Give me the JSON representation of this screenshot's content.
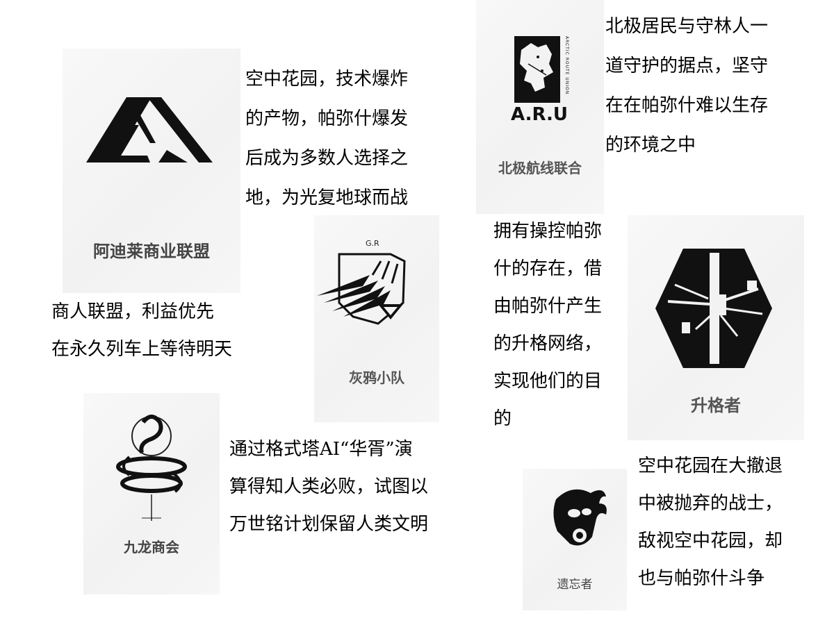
{
  "factions": [
    {
      "id": "adilai",
      "name": "阿迪莱商业联盟",
      "logo_icon": "double-triangle-emblem",
      "description": [
        "空中花园，技术爆炸",
        "的产物，帕弥什爆发",
        "后成为多数人选择之",
        "地，为光复地球而战"
      ]
    },
    {
      "id": "aru",
      "name": "北极航线联合",
      "logo_icon": "aru-map-emblem",
      "logo_text": "A.R.U",
      "logo_vertical_text": "ARCTIC ROUTE UNION",
      "description": [
        "北极居民与守林人一",
        "道守护的据点，坚守",
        "在在帕弥什难以生存",
        "的环境之中"
      ]
    },
    {
      "id": "merchant",
      "description": [
        "商人联盟，利益优先",
        "在永久列车上等待明天"
      ]
    },
    {
      "id": "gray-raven",
      "name": "灰鸦小队",
      "logo_icon": "raven-wing-shield-emblem",
      "logo_text": "G.R"
    },
    {
      "id": "ascendant",
      "name": "升格者",
      "logo_icon": "hexagon-network-emblem",
      "description": [
        "拥有操控帕弥",
        "什的存在，借",
        "由帕弥什产生",
        "的升格网络，",
        "实现他们的目",
        "的"
      ]
    },
    {
      "id": "kowloong",
      "name": "九龙商会",
      "logo_icon": "coiled-dragon-emblem",
      "description": [
        "通过格式塔AI“华胥”演",
        "算得知人类必败，试图以",
        "万世铭计划保留人类文明"
      ]
    },
    {
      "id": "forsaken",
      "name": "遗忘者",
      "logo_icon": "gasmask-flame-emblem",
      "description": [
        "空中花园在大撤退",
        "中被抛弃的战士，",
        "敌视空中花园，却",
        "也与帕弥什斗争"
      ]
    }
  ]
}
